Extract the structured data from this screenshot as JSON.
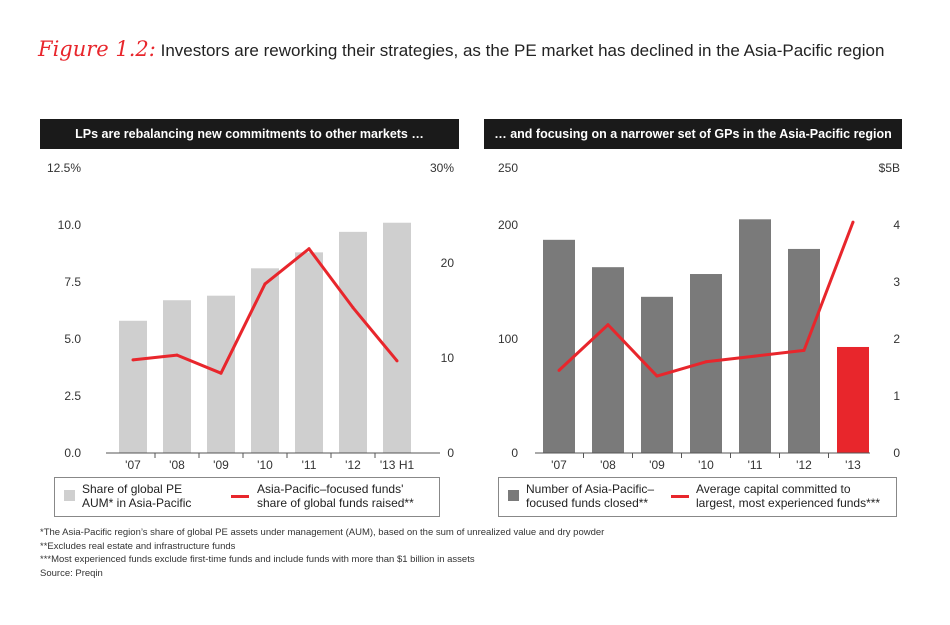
{
  "figure": {
    "label": "Figure 1.2:",
    "title": "Investors are reworking their strategies, as the PE market has declined in the Asia-Pacific region"
  },
  "chart_data": [
    {
      "type": "bar+line",
      "header": "LPs are rebalancing new commitments to other markets …",
      "categories": [
        "'07",
        "'08",
        "'09",
        "'10",
        "'11",
        "'12",
        "'13 H1"
      ],
      "left_axis": {
        "ylim": [
          0,
          12.5
        ],
        "ticks": [
          "0.0",
          "2.5",
          "5.0",
          "7.5",
          "10.0",
          "12.5%"
        ],
        "tick_values": [
          0,
          2.5,
          5.0,
          7.5,
          10.0,
          12.5
        ]
      },
      "right_axis": {
        "ylim": [
          0,
          30
        ],
        "ticks": [
          "0",
          "10",
          "20",
          "30%"
        ],
        "tick_values": [
          0,
          10,
          20,
          30
        ]
      },
      "series": [
        {
          "name": "Share of global PE AUM* in Asia-Pacific",
          "kind": "bar",
          "axis": "left",
          "color": "#cfcfcf",
          "values": [
            5.8,
            6.7,
            6.9,
            8.1,
            8.8,
            9.7,
            10.1
          ]
        },
        {
          "name": "Asia-Pacific–focused funds' share of global funds raised**",
          "kind": "line",
          "axis": "right",
          "color": "#e8262c",
          "values": [
            9.8,
            10.3,
            8.4,
            17.8,
            21.5,
            15.3,
            9.7
          ]
        }
      ]
    },
    {
      "type": "bar+line",
      "header": "… and focusing on a narrower set of GPs in the Asia-Pacific region",
      "categories": [
        "'07",
        "'08",
        "'09",
        "'10",
        "'11",
        "'12",
        "'13"
      ],
      "left_axis": {
        "ylim": [
          0,
          250
        ],
        "ticks": [
          "0",
          "100",
          "200",
          "250"
        ],
        "tick_values": [
          0,
          100,
          200,
          250
        ]
      },
      "right_axis": {
        "ylim": [
          0,
          5
        ],
        "ticks": [
          "0",
          "1",
          "2",
          "3",
          "4",
          "$5B"
        ],
        "tick_values": [
          0,
          1,
          2,
          3,
          4,
          5
        ]
      },
      "series": [
        {
          "name": "Number of Asia-Pacific–focused funds closed**",
          "kind": "bar",
          "axis": "left",
          "color": "#7a7a7a",
          "values": [
            187,
            163,
            137,
            157,
            205,
            179,
            93
          ],
          "highlight": {
            "index": 6,
            "color": "#e8262c"
          }
        },
        {
          "name": "Average capital committed to largest, most experienced funds***",
          "kind": "line",
          "axis": "right",
          "color": "#e8262c",
          "values": [
            1.45,
            2.25,
            1.35,
            1.6,
            1.7,
            1.8,
            4.05
          ]
        }
      ]
    }
  ],
  "legends": {
    "left": {
      "bar_label": "Share of global PE AUM* in Asia-Pacific",
      "line_label": "Asia-Pacific–focused funds' share of global funds raised**"
    },
    "right": {
      "bar_label": "Number of Asia-Pacific–focused funds closed**",
      "line_label": "Average capital committed to largest, most experienced funds***"
    }
  },
  "footnotes": [
    "*The Asia-Pacific region’s share of global PE assets under management (AUM), based on the sum of unrealized value and dry powder",
    "**Excludes real estate and infrastructure funds",
    "***Most experienced funds exclude first-time funds and include funds with more than $1 billion in assets",
    "Source: Preqin"
  ]
}
